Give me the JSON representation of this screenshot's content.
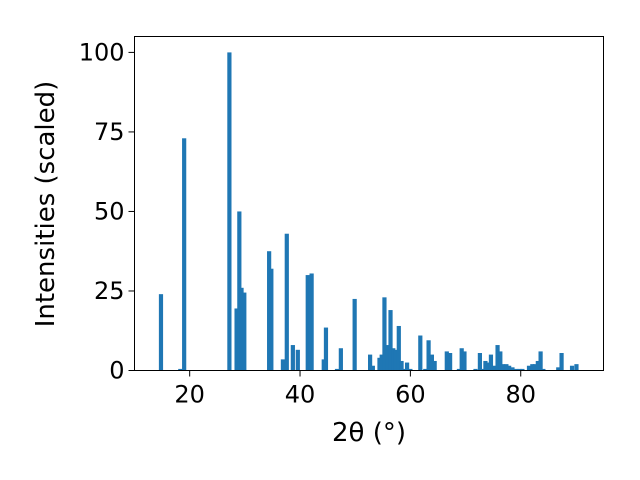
{
  "chart_data": {
    "type": "bar",
    "title": "",
    "xlabel": "2θ (°)",
    "ylabel": "Intensities (scaled)",
    "xlim": [
      10,
      95
    ],
    "ylim": [
      0,
      105
    ],
    "xticks": [
      20,
      40,
      60,
      80
    ],
    "yticks": [
      0,
      25,
      50,
      75,
      100
    ],
    "xtick_labels": [
      "20",
      "40",
      "60",
      "80"
    ],
    "ytick_labels": [
      "0",
      "25",
      "50",
      "75",
      "100"
    ],
    "bar_color": "#1f77b4",
    "grid": false,
    "x": [
      14.8,
      18.3,
      19.0,
      27.2,
      28.5,
      29.0,
      29.4,
      29.9,
      34.4,
      34.8,
      36.9,
      37.6,
      38.7,
      39.6,
      41.4,
      42.1,
      44.3,
      44.7,
      46.7,
      47.4,
      49.9,
      52.7,
      53.2,
      54.4,
      54.8,
      55.3,
      55.8,
      56.4,
      56.9,
      57.4,
      57.9,
      58.4,
      58.9,
      59.4,
      60.0,
      61.8,
      62.7,
      63.3,
      63.9,
      64.4,
      66.6,
      67.2,
      68.8,
      69.3,
      69.8,
      71.8,
      72.6,
      73.1,
      73.6,
      74.1,
      74.6,
      75.2,
      75.8,
      76.3,
      76.8,
      77.4,
      77.9,
      78.5,
      79.2,
      79.8,
      80.3,
      81.5,
      82.1,
      82.6,
      83.1,
      83.6,
      84.1,
      86.8,
      87.4,
      89.3,
      90.1
    ],
    "values": [
      24.0,
      0.5,
      73.0,
      100.0,
      19.5,
      50.0,
      26.0,
      24.5,
      37.5,
      32.0,
      3.5,
      43.0,
      8.0,
      6.5,
      30.0,
      30.5,
      3.5,
      13.5,
      0.5,
      7.0,
      22.5,
      5.0,
      1.5,
      4.0,
      5.0,
      23.0,
      8.0,
      19.0,
      7.0,
      6.5,
      14.0,
      3.0,
      0.5,
      2.5,
      0.5,
      11.0,
      0.5,
      9.5,
      5.0,
      3.0,
      6.0,
      5.5,
      0.5,
      7.0,
      6.0,
      0.5,
      5.5,
      0.5,
      3.0,
      2.5,
      5.0,
      1.5,
      8.0,
      6.0,
      2.0,
      2.0,
      1.5,
      1.0,
      0.5,
      0.5,
      0.5,
      1.5,
      2.0,
      2.0,
      3.0,
      6.0,
      0.5,
      1.0,
      5.5,
      1.5,
      2.0
    ]
  }
}
